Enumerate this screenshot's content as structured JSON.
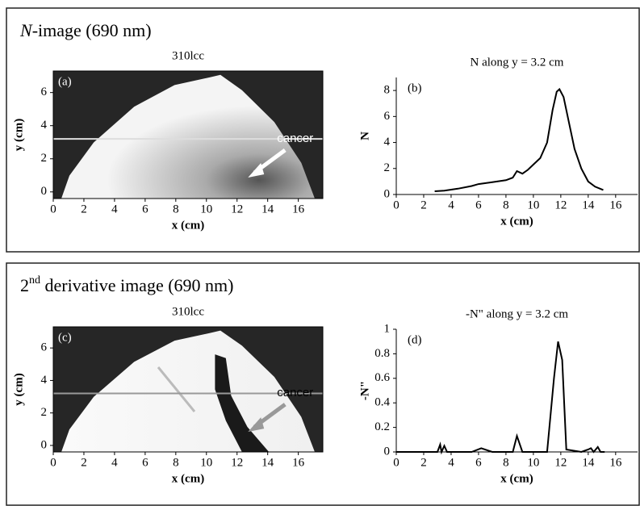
{
  "headings": [
    {
      "italic": "N",
      "rest": "-image (690 nm)"
    },
    {
      "base": "2",
      "sup": "nd",
      "rest": " derivative image (690 nm)"
    }
  ],
  "chart_data": [
    {
      "type": "image",
      "title": "310lcc",
      "panel": "(a)",
      "xlabel": "x (cm)",
      "ylabel": "y (cm)",
      "annotation": "cancer",
      "xlim": [
        0,
        17.6
      ],
      "xticks": [
        0,
        2,
        4,
        6,
        8,
        10,
        12,
        14,
        16
      ],
      "ylim": [
        -0.4,
        7.3
      ],
      "yticks": [
        0,
        2,
        4,
        6
      ],
      "line_y": 3.2
    },
    {
      "type": "line",
      "title": "N along y = 3.2 cm",
      "panel": "(b)",
      "xlabel": "x (cm)",
      "ylabel": "N",
      "color": "#000000",
      "x": [
        2.8,
        3.5,
        4.5,
        5.5,
        6,
        7,
        8,
        8.5,
        8.8,
        9.2,
        9.6,
        10,
        10.5,
        11,
        11.4,
        11.7,
        11.9,
        12.2,
        12.6,
        13,
        13.5,
        14,
        14.5,
        15.1
      ],
      "values": [
        0.25,
        0.3,
        0.45,
        0.65,
        0.8,
        0.95,
        1.1,
        1.3,
        1.8,
        1.6,
        1.9,
        2.3,
        2.8,
        4,
        6.5,
        7.9,
        8.1,
        7.5,
        5.5,
        3.5,
        2,
        1,
        0.6,
        0.35
      ],
      "xlim": [
        0,
        17.6
      ],
      "xticks": [
        0,
        2,
        4,
        6,
        8,
        10,
        12,
        14,
        16
      ],
      "ylim": [
        0,
        9
      ],
      "yticks": [
        0,
        2,
        4,
        6,
        8
      ]
    },
    {
      "type": "image",
      "title": "310lcc",
      "panel": "(c)",
      "xlabel": "x (cm)",
      "ylabel": "y (cm)",
      "annotation": "cancer",
      "xlim": [
        0,
        17.6
      ],
      "xticks": [
        0,
        2,
        4,
        6,
        8,
        10,
        12,
        14,
        16
      ],
      "ylim": [
        -0.4,
        7.3
      ],
      "yticks": [
        0,
        2,
        4,
        6
      ],
      "line_y": 3.2
    },
    {
      "type": "line",
      "title": "-N\" along y = 3.2 cm",
      "panel": "(d)",
      "xlabel": "x (cm)",
      "ylabel": "-N\"",
      "color": "#000000",
      "x": [
        0,
        3,
        3.2,
        3.3,
        3.5,
        3.7,
        5.5,
        6.2,
        7,
        8.5,
        8.8,
        9.2,
        11,
        11.5,
        11.8,
        12.1,
        12.4,
        13.5,
        14,
        14.2,
        14.4,
        14.7,
        14.9,
        15.2
      ],
      "values": [
        0,
        0,
        0.06,
        0,
        0.05,
        0,
        0,
        0.03,
        0,
        0,
        0.13,
        0,
        0,
        0.6,
        0.9,
        0.75,
        0.02,
        0,
        0.02,
        0.03,
        0,
        0.04,
        0,
        0
      ],
      "xlim": [
        0,
        17.6
      ],
      "xticks": [
        0,
        2,
        4,
        6,
        8,
        10,
        12,
        14,
        16
      ],
      "ylim": [
        0,
        1
      ],
      "yticks": [
        0,
        0.2,
        0.4,
        0.6,
        0.8,
        1
      ]
    }
  ]
}
